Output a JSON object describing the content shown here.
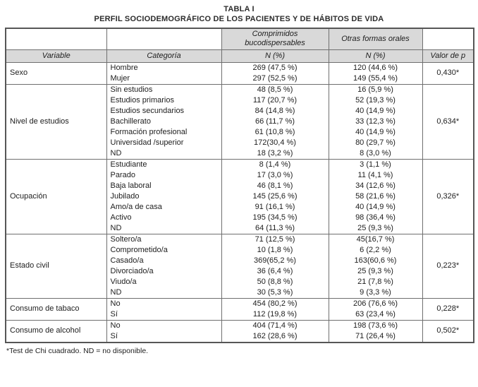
{
  "page": {
    "title": "TABLA I",
    "subtitle": "PERFIL SOCIODEMOGRÁFICO DE LOS PACIENTES Y DE HÁBITOS DE VIDA",
    "footnote": "*Test de Chi cuadrado. ND = no disponible."
  },
  "table": {
    "group_headers": [
      {
        "label": "Comprimidos bucodispersables"
      },
      {
        "label": "Otras formas orales"
      }
    ],
    "columns": [
      "Variable",
      "Categoría",
      "N (%)",
      "N (%)",
      "Valor de p"
    ],
    "groups": [
      {
        "variable": "Sexo",
        "p_value": "0,430*",
        "rows": [
          {
            "category": "Hombre",
            "col1": "269 (47,5 %)",
            "col2": "120 (44,6 %)"
          },
          {
            "category": "Mujer",
            "col1": "297 (52,5 %)",
            "col2": "149 (55,4 %)"
          }
        ]
      },
      {
        "variable": "Nivel de estudios",
        "p_value": "0,634*",
        "rows": [
          {
            "category": "Sin estudios",
            "col1": "48 (8,5 %)",
            "col2": "16 (5,9 %)"
          },
          {
            "category": "Estudios primarios",
            "col1": "117 (20,7 %)",
            "col2": "52 (19,3 %)"
          },
          {
            "category": "Estudios secundarios",
            "col1": "84 (14,8 %)",
            "col2": "40 (14,9 %)"
          },
          {
            "category": "Bachillerato",
            "col1": "66 (11,7 %)",
            "col2": "33 (12,3 %)"
          },
          {
            "category": "Formación profesional",
            "col1": "61 (10,8 %)",
            "col2": "40 (14,9 %)"
          },
          {
            "category": "Universidad /superior",
            "col1": "172(30,4 %)",
            "col2": "80 (29,7 %)"
          },
          {
            "category": "ND",
            "col1": "18 (3,2 %)",
            "col2": "8 (3,0 %)"
          }
        ]
      },
      {
        "variable": "Ocupación",
        "p_value": "0,326*",
        "rows": [
          {
            "category": "Estudiante",
            "col1": "8 (1,4 %)",
            "col2": "3 (1,1 %)"
          },
          {
            "category": "Parado",
            "col1": "17 (3,0 %)",
            "col2": "11 (4,1 %)"
          },
          {
            "category": "Baja laboral",
            "col1": "46 (8,1 %)",
            "col2": "34 (12,6 %)"
          },
          {
            "category": "Jubilado",
            "col1": "145 (25,6 %)",
            "col2": "58 (21,6 %)"
          },
          {
            "category": "Amo/a de casa",
            "col1": "91 (16,1 %)",
            "col2": "40 (14,9 %)"
          },
          {
            "category": "Activo",
            "col1": "195 (34,5 %)",
            "col2": "98 (36,4 %)"
          },
          {
            "category": "ND",
            "col1": "64 (11,3 %)",
            "col2": "25 (9,3 %)"
          }
        ]
      },
      {
        "variable": "Estado civil",
        "p_value": "0,223*",
        "rows": [
          {
            "category": "Soltero/a",
            "col1": "71 (12,5 %)",
            "col2": "45(16,7 %)"
          },
          {
            "category": "Comprometido/a",
            "col1": "10 (1,8 %)",
            "col2": "6 (2,2 %)"
          },
          {
            "category": "Casado/a",
            "col1": "369(65,2 %)",
            "col2": "163(60,6 %)"
          },
          {
            "category": "Divorciado/a",
            "col1": "36 (6,4 %)",
            "col2": "25 (9,3 %)"
          },
          {
            "category": "Viudo/a",
            "col1": "50 (8,8 %)",
            "col2": "21 (7,8 %)"
          },
          {
            "category": "ND",
            "col1": "30 (5,3 %)",
            "col2": "9 (3,3 %)"
          }
        ]
      },
      {
        "variable": "Consumo de tabaco",
        "p_value": "0,228*",
        "rows": [
          {
            "category": "No",
            "col1": "454 (80,2 %)",
            "col2": "206 (76,6 %)"
          },
          {
            "category": "Sí",
            "col1": "112 (19,8 %)",
            "col2": "63 (23,4 %)"
          }
        ]
      },
      {
        "variable": "Consumo de alcohol",
        "p_value": "0,502*",
        "rows": [
          {
            "category": "No",
            "col1": "404 (71,4 %)",
            "col2": "198 (73,6 %)"
          },
          {
            "category": "Sí",
            "col1": "162 (28,6 %)",
            "col2": "71 (26,4 %)"
          }
        ]
      }
    ]
  }
}
